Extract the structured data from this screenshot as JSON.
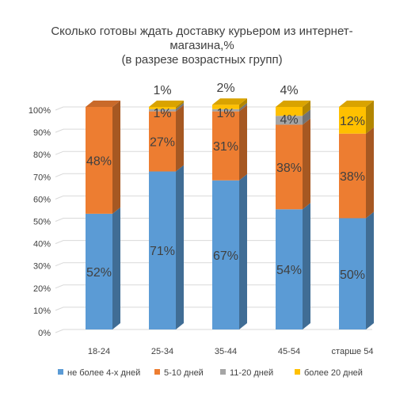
{
  "chart_data": {
    "type": "bar",
    "stacked": true,
    "three_d": true,
    "title_lines": [
      "Сколько готовы ждать доставку курьером из интернет-",
      "магазина,%",
      "(в разрезе возрастных групп)"
    ],
    "categories": [
      "18-24",
      "25-34",
      "35-44",
      "45-54",
      "старше 54"
    ],
    "y_ticks": [
      "0%",
      "10%",
      "20%",
      "30%",
      "40%",
      "50%",
      "60%",
      "70%",
      "80%",
      "90%",
      "100%"
    ],
    "ylim": [
      0,
      100
    ],
    "grid": true,
    "legend_position": "bottom",
    "series": [
      {
        "name": "не более 4-х дней",
        "color": "#5B9BD5",
        "values": [
          52,
          71,
          67,
          54,
          50
        ],
        "labels": [
          "52%",
          "71%",
          "67%",
          "54%",
          "50%"
        ]
      },
      {
        "name": "5-10 дней",
        "color": "#ED7D31",
        "values": [
          48,
          27,
          31,
          38,
          38
        ],
        "labels": [
          "48%",
          "27%",
          "31%",
          "38%",
          "38%"
        ]
      },
      {
        "name": "11-20 дней",
        "color": "#A5A5A5",
        "values": [
          0,
          1,
          1,
          4,
          0
        ],
        "labels": [
          "",
          "1%",
          "1%",
          "4%",
          ""
        ]
      },
      {
        "name": "более 20 дней",
        "color": "#FFC000",
        "values": [
          0,
          1,
          2,
          4,
          12
        ],
        "labels": [
          "",
          "1%",
          "2%",
          "4%",
          "12%"
        ]
      }
    ]
  }
}
